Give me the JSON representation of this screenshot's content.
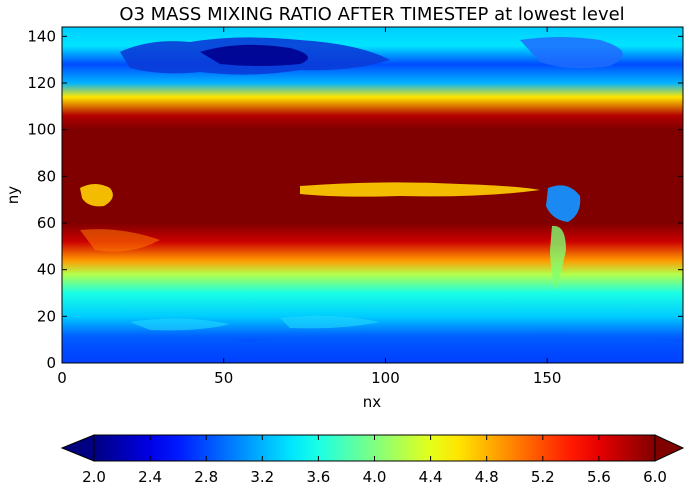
{
  "chart_data": {
    "type": "heatmap",
    "title": "O3 MASS MIXING RATIO AFTER TIMESTEP  at lowest level",
    "xlabel": "nx",
    "ylabel": "ny",
    "xlim": [
      0,
      192
    ],
    "ylim": [
      0,
      144
    ],
    "x_ticks": [
      0,
      50,
      100,
      150
    ],
    "y_ticks": [
      0,
      20,
      40,
      60,
      80,
      100,
      120,
      140
    ],
    "colormap": "jet",
    "colorbar": {
      "orientation": "horizontal",
      "placement": "bottom",
      "vmin": 2.0,
      "vmax": 6.0,
      "extend": "both",
      "ticks": [
        "2.0",
        "2.4",
        "2.8",
        "3.2",
        "3.6",
        "4.0",
        "4.4",
        "4.8",
        "5.2",
        "5.6",
        "6.0"
      ]
    },
    "grid": false,
    "field_summary": {
      "ny_band_levels": [
        {
          "ny": 0,
          "value": 2.6
        },
        {
          "ny": 6,
          "value": 2.7
        },
        {
          "ny": 12,
          "value": 2.9
        },
        {
          "ny": 20,
          "value": 3.3
        },
        {
          "ny": 30,
          "value": 3.6
        },
        {
          "ny": 38,
          "value": 4.2
        },
        {
          "ny": 44,
          "value": 4.9
        },
        {
          "ny": 52,
          "value": 5.7
        },
        {
          "ny": 60,
          "value": 6.2
        },
        {
          "ny": 100,
          "value": 6.2
        },
        {
          "ny": 106,
          "value": 5.8
        },
        {
          "ny": 114,
          "value": 4.6
        },
        {
          "ny": 120,
          "value": 3.2
        },
        {
          "ny": 128,
          "value": 2.8
        },
        {
          "ny": 136,
          "value": 3.4
        },
        {
          "ny": 144,
          "value": 3.3
        }
      ]
    }
  }
}
